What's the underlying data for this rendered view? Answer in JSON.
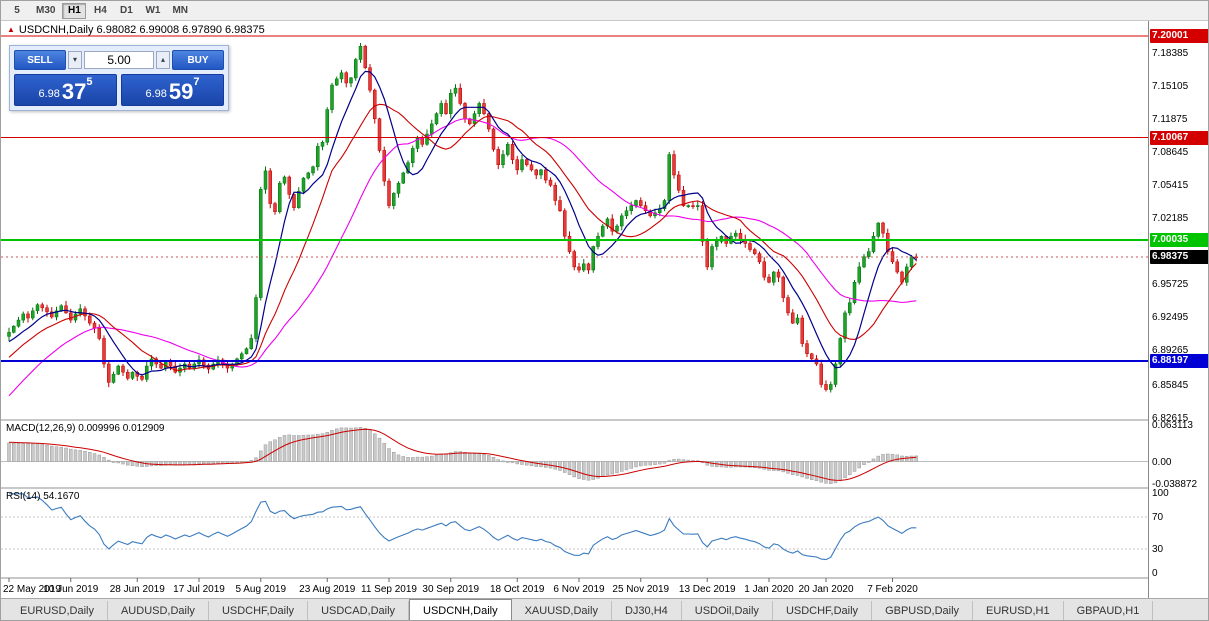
{
  "toolbar": {
    "timeframes": [
      "5",
      "M30",
      "H1",
      "H4",
      "D1",
      "W1",
      "MN"
    ],
    "active": "H1"
  },
  "chart": {
    "ohlc_line": "USDCNH,Daily  6.98082 6.99008 6.97890 6.98375"
  },
  "icons": {
    "up_arrow": "▴",
    "down_arrow": "▾",
    "marker": "▲"
  },
  "trade_panel": {
    "sell_label": "SELL",
    "buy_label": "BUY",
    "volume": "5.00",
    "bid": {
      "prefix": "6.98",
      "big": "37",
      "sup": "5"
    },
    "ask": {
      "prefix": "6.98",
      "big": "59",
      "sup": "7"
    }
  },
  "levels": [
    {
      "price": 7.20001,
      "label": "7.20001",
      "color": "#d40000",
      "width": 1
    },
    {
      "price": 7.10067,
      "label": "7.10067",
      "color": "#d40000",
      "width": 1
    },
    {
      "price": 7.00035,
      "label": "7.00035",
      "color": "#00c400",
      "width": 2
    },
    {
      "price": 6.88197,
      "label": "6.88197",
      "color": "#0000d4",
      "width": 2
    }
  ],
  "current_price": {
    "label": "6.98375",
    "value": 6.98375,
    "color": "#000000"
  },
  "tabs": {
    "items": [
      "EURUSD,Daily",
      "AUDUSD,Daily",
      "USDCHF,Daily",
      "USDCAD,Daily",
      "USDCNH,Daily",
      "XAUUSD,Daily",
      "DJ30,H4",
      "USDOil,Daily",
      "USDCHF,Daily",
      "GBPUSD,Daily",
      "EURUSD,H1",
      "GBPAUD,H1"
    ],
    "active_index": 4
  },
  "chart_data": {
    "type": "candlestick",
    "symbol": "USDCNH",
    "timeframe": "Daily",
    "y_ticks": [
      "7.18385",
      "7.15105",
      "7.11875",
      "7.08645",
      "7.05415",
      "7.02185",
      "6.95725",
      "6.92495",
      "6.89265",
      "6.85845",
      "6.82615"
    ],
    "x_labels": [
      {
        "text": "22 May 2019",
        "i": 0
      },
      {
        "text": "10 Jun 2019",
        "i": 13
      },
      {
        "text": "28 Jun 2019",
        "i": 27
      },
      {
        "text": "17 Jul 2019",
        "i": 40
      },
      {
        "text": "5 Aug 2019",
        "i": 53
      },
      {
        "text": "23 Aug 2019",
        "i": 67
      },
      {
        "text": "11 Sep 2019",
        "i": 80
      },
      {
        "text": "30 Sep 2019",
        "i": 93
      },
      {
        "text": "18 Oct 2019",
        "i": 107
      },
      {
        "text": "6 Nov 2019",
        "i": 120
      },
      {
        "text": "25 Nov 2019",
        "i": 133
      },
      {
        "text": "13 Dec 2019",
        "i": 147
      },
      {
        "text": "1 Jan 2020",
        "i": 160
      },
      {
        "text": "20 Jan 2020",
        "i": 172
      },
      {
        "text": "7 Feb 2020",
        "i": 186
      }
    ],
    "macd": {
      "title_line": "MACD(12,26,9) 0.009996 0.012909",
      "axis": [
        "0.063113",
        "0.00",
        "-0.038872"
      ],
      "max": 0.063113,
      "min": -0.038872
    },
    "rsi": {
      "title_line": "RSI(14) 54.1670",
      "axis": [
        100,
        70,
        30,
        0
      ],
      "last": 54.167
    },
    "ma_warmup_closes": [
      6.7,
      6.706,
      6.712,
      6.718,
      6.724,
      6.73,
      6.736,
      6.742,
      6.748,
      6.754,
      6.76,
      6.766,
      6.772,
      6.778,
      6.784,
      6.79,
      6.796,
      6.802,
      6.808,
      6.814,
      6.82,
      6.826,
      6.832,
      6.838,
      6.844,
      6.85,
      6.856,
      6.862,
      6.868,
      6.874,
      6.88,
      6.884,
      6.888,
      6.892,
      6.895,
      6.898,
      6.9,
      6.902,
      6.904,
      6.906
    ],
    "closes": [
      6.91,
      6.916,
      6.922,
      6.928,
      6.924,
      6.931,
      6.937,
      6.934,
      6.93,
      6.925,
      6.931,
      6.936,
      6.929,
      6.922,
      6.928,
      6.933,
      6.926,
      6.919,
      6.914,
      6.904,
      6.879,
      6.861,
      6.869,
      6.877,
      6.871,
      6.865,
      6.871,
      6.867,
      6.864,
      6.877,
      6.884,
      6.879,
      6.875,
      6.881,
      6.877,
      6.871,
      6.875,
      6.879,
      6.875,
      6.879,
      6.883,
      6.878,
      6.874,
      6.879,
      6.883,
      6.879,
      6.875,
      6.879,
      6.884,
      6.889,
      6.894,
      6.904,
      6.944,
      7.05,
      7.068,
      7.036,
      7.028,
      7.056,
      7.062,
      7.045,
      7.032,
      7.048,
      7.061,
      7.066,
      7.072,
      7.092,
      7.096,
      7.128,
      7.152,
      7.158,
      7.164,
      7.154,
      7.159,
      7.177,
      7.19,
      7.169,
      7.147,
      7.119,
      7.088,
      7.058,
      7.034,
      7.046,
      7.056,
      7.066,
      7.076,
      7.09,
      7.1,
      7.094,
      7.104,
      7.114,
      7.124,
      7.134,
      7.124,
      7.144,
      7.149,
      7.134,
      7.119,
      7.114,
      7.124,
      7.134,
      7.124,
      7.109,
      7.089,
      7.074,
      7.084,
      7.094,
      7.079,
      7.069,
      7.079,
      7.074,
      7.069,
      7.064,
      7.069,
      7.059,
      7.054,
      7.039,
      7.029,
      7.004,
      6.989,
      6.974,
      6.971,
      6.977,
      6.971,
      6.994,
      7.004,
      7.014,
      7.021,
      7.009,
      7.014,
      7.024,
      7.029,
      7.034,
      7.039,
      7.034,
      7.029,
      7.024,
      7.027,
      7.031,
      7.039,
      7.084,
      7.064,
      7.049,
      7.034,
      7.034,
      7.033,
      7.034,
      6.999,
      6.974,
      6.994,
      6.999,
      7.004,
      6.997,
      7.004,
      7.007,
      7.001,
      6.997,
      6.991,
      6.987,
      6.979,
      6.964,
      6.959,
      6.969,
      6.964,
      6.944,
      6.929,
      6.919,
      6.924,
      6.899,
      6.889,
      6.884,
      6.879,
      6.859,
      6.854,
      6.859,
      6.879,
      6.904,
      6.929,
      6.939,
      6.959,
      6.974,
      6.984,
      6.989,
      7.004,
      7.017,
      7.007,
      6.989,
      6.979,
      6.969,
      6.959,
      6.974,
      6.984,
      6.98375
    ]
  }
}
